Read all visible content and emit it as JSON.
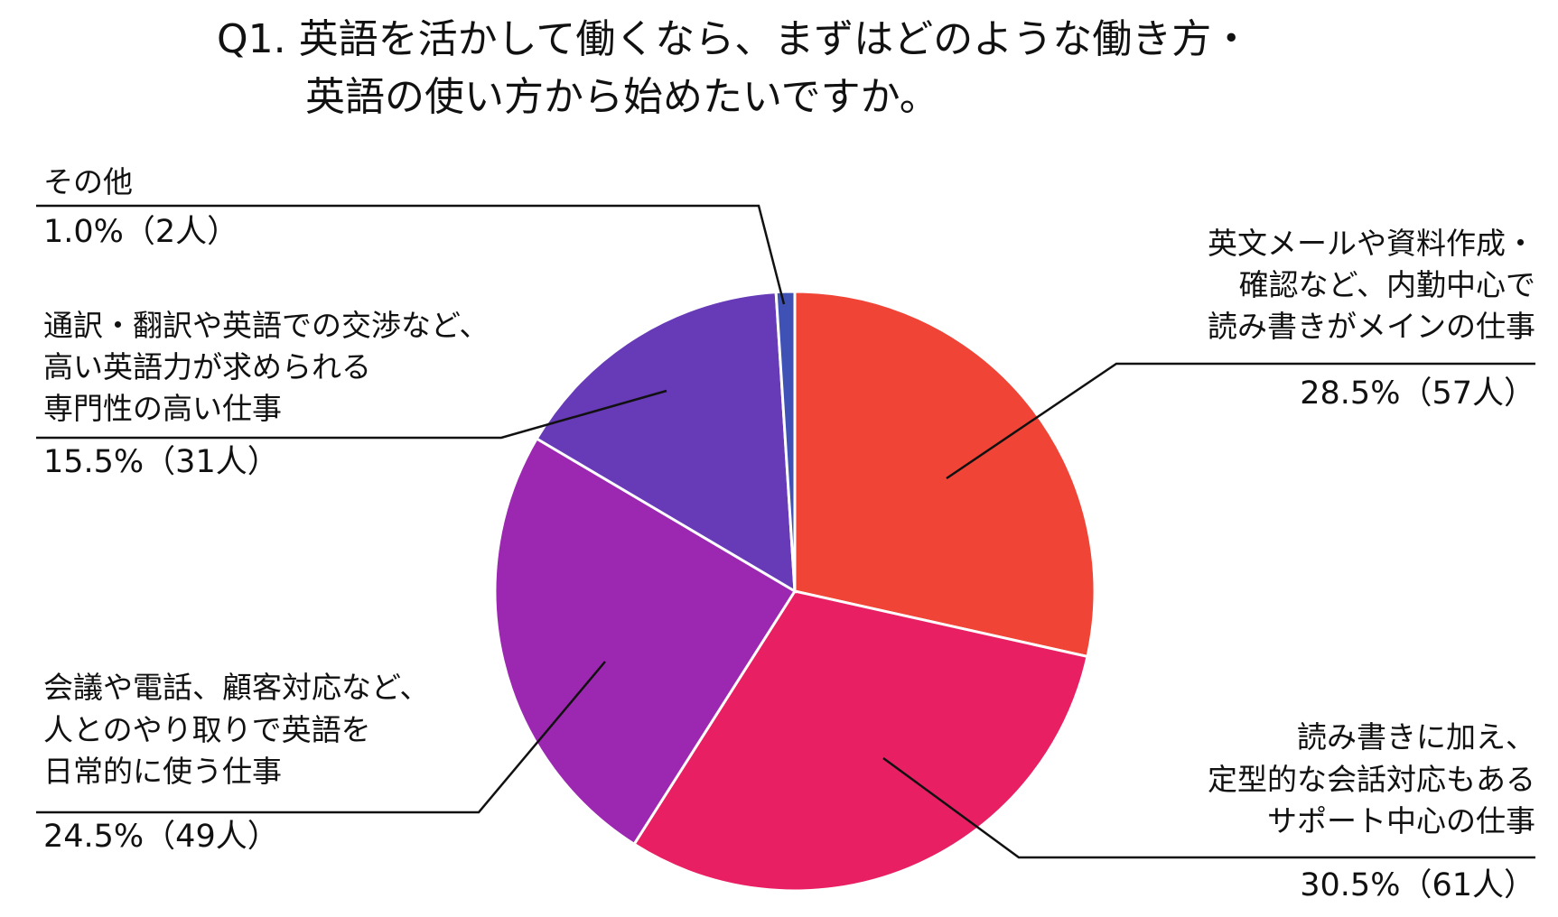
{
  "chart_data": {
    "type": "pie",
    "title_lines": [
      "Q1. 英語を活かして働くなら、まずはどのような働き方・",
      "英語の使い方から始めたいですか。"
    ],
    "slices": [
      {
        "label_lines": [
          "英文メールや資料作成・",
          "確認など、内勤中心で",
          "読み書きがメインの仕事"
        ],
        "value_text": "28.5%（57人）",
        "percent": 28.5,
        "count": 57,
        "color": "#f04437"
      },
      {
        "label_lines": [
          "読み書きに加え、",
          "定型的な会話対応もある",
          "サポート中心の仕事"
        ],
        "value_text": "30.5%（61人）",
        "percent": 30.5,
        "count": 61,
        "color": "#e91f63"
      },
      {
        "label_lines": [
          "会議や電話、顧客対応など、",
          "人とのやり取りで英語を",
          "日常的に使う仕事"
        ],
        "value_text": "24.5%（49人）",
        "percent": 24.5,
        "count": 49,
        "color": "#9c27b0"
      },
      {
        "label_lines": [
          "通訳・翻訳や英語での交渉など、",
          "高い英語力が求められる",
          "専門性の高い仕事"
        ],
        "value_text": "15.5%（31人）",
        "percent": 15.5,
        "count": 31,
        "color": "#673ab7"
      },
      {
        "label_lines": [
          "その他"
        ],
        "value_text": "1.0%（2人）",
        "percent": 1.0,
        "count": 2,
        "color": "#3f51b5"
      }
    ]
  }
}
